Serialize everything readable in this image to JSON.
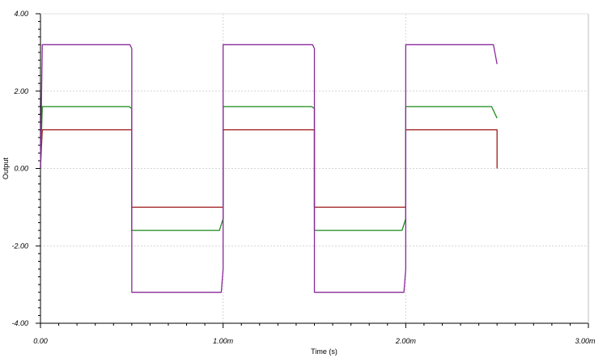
{
  "chart_data": {
    "type": "line",
    "title": "",
    "xlabel": "Time (s)",
    "ylabel": "Output",
    "xlim": [
      0,
      0.003
    ],
    "ylim": [
      -4,
      4
    ],
    "grid": true,
    "x_ticks": [
      {
        "value": 0,
        "label": "0.00"
      },
      {
        "value": 0.001,
        "label": "1.00m"
      },
      {
        "value": 0.002,
        "label": "2.00m"
      },
      {
        "value": 0.003,
        "label": "3.00m"
      }
    ],
    "y_ticks": [
      {
        "value": 4,
        "label": "4.00"
      },
      {
        "value": 2,
        "label": "2.00"
      },
      {
        "value": 0,
        "label": "0.00"
      },
      {
        "value": -2,
        "label": "-2.00"
      },
      {
        "value": -4,
        "label": "-4.00"
      }
    ],
    "series": [
      {
        "color": "#a01a1a",
        "x": [
          0,
          1e-05,
          0.0005,
          0.0005,
          0.001,
          0.001,
          0.0015,
          0.0015,
          0.002,
          0.002,
          0.0025,
          0.0025
        ],
        "y": [
          0,
          1.0,
          1.0,
          -1.0,
          -1.0,
          1.0,
          1.0,
          -1.0,
          -1.0,
          1.0,
          1.0,
          0
        ]
      },
      {
        "color": "#1a8a1a",
        "x": [
          0,
          1e-05,
          0.000485,
          0.0005,
          0.0005,
          0.00098,
          0.001,
          0.001,
          0.001485,
          0.0015,
          0.0015,
          0.00198,
          0.002,
          0.002,
          0.00247,
          0.0025
        ],
        "y": [
          0,
          1.6,
          1.6,
          1.55,
          -1.6,
          -1.6,
          -1.3,
          1.6,
          1.6,
          1.55,
          -1.6,
          -1.6,
          -1.3,
          1.6,
          1.6,
          1.3
        ]
      },
      {
        "color": "#8a2a9a",
        "x": [
          0,
          1e-05,
          0.00049,
          0.0005,
          0.0005,
          0.00099,
          0.001,
          0.001,
          0.00149,
          0.0015,
          0.0015,
          0.00199,
          0.002,
          0.002,
          0.00248,
          0.0025
        ],
        "y": [
          0,
          3.2,
          3.2,
          3.1,
          -3.2,
          -3.2,
          -2.6,
          3.2,
          3.2,
          3.1,
          -3.2,
          -3.2,
          -2.6,
          3.2,
          3.2,
          2.7
        ]
      }
    ]
  }
}
